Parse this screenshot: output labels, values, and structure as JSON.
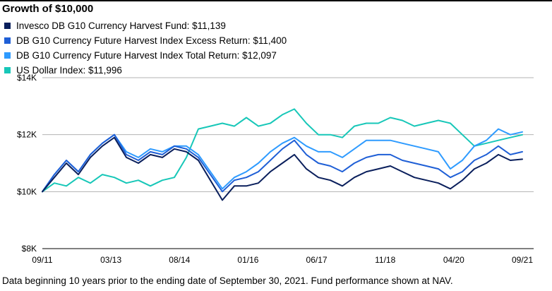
{
  "chart_data": {
    "type": "line",
    "title": "Growth of $10,000",
    "ylim": [
      8000,
      14000
    ],
    "yticks": [
      8000,
      10000,
      12000,
      14000
    ],
    "ytick_labels": [
      "$8K",
      "$10K",
      "$12K",
      "$14K"
    ],
    "xtick_labels": [
      "09/11",
      "03/13",
      "08/14",
      "01/16",
      "06/17",
      "11/18",
      "04/20",
      "09/21"
    ],
    "x": [
      "09/11",
      "12/11",
      "03/12",
      "06/12",
      "09/12",
      "12/12",
      "03/13",
      "06/13",
      "09/13",
      "12/13",
      "03/14",
      "06/14",
      "09/14",
      "12/14",
      "03/15",
      "06/15",
      "09/15",
      "12/15",
      "03/16",
      "06/16",
      "09/16",
      "12/16",
      "03/17",
      "06/17",
      "09/17",
      "12/17",
      "03/18",
      "06/18",
      "09/18",
      "12/18",
      "03/19",
      "06/19",
      "09/19",
      "12/19",
      "03/20",
      "06/20",
      "09/20",
      "12/20",
      "03/21",
      "06/21",
      "09/21"
    ],
    "grid": true,
    "legend_position": "top-left",
    "series": [
      {
        "name": "Invesco DB G10 Currency Harvest Fund: $11,139",
        "color": "#0a1f5c",
        "values": [
          10000,
          10500,
          11000,
          10600,
          11200,
          11600,
          11900,
          11200,
          11000,
          11300,
          11200,
          11500,
          11400,
          11100,
          10400,
          9700,
          10200,
          10200,
          10300,
          10700,
          11000,
          11300,
          10800,
          10500,
          10400,
          10200,
          10500,
          10700,
          10800,
          10900,
          10700,
          10500,
          10400,
          10300,
          10100,
          10400,
          10800,
          11000,
          11300,
          11100,
          11139
        ]
      },
      {
        "name": "DB G10 Currency Future Harvest Index Excess Return: $11,400",
        "color": "#1f5fd6",
        "values": [
          10000,
          10600,
          11100,
          10700,
          11300,
          11700,
          12000,
          11300,
          11100,
          11400,
          11300,
          11600,
          11500,
          11200,
          10600,
          10000,
          10400,
          10500,
          10700,
          11100,
          11500,
          11800,
          11300,
          11000,
          10900,
          10700,
          11000,
          11200,
          11300,
          11300,
          11100,
          11000,
          10900,
          10800,
          10500,
          10700,
          11100,
          11300,
          11600,
          11300,
          11400
        ]
      },
      {
        "name": "DB G10 Currency Future Harvest Index Total Return: $12,097",
        "color": "#2e9bff",
        "values": [
          10000,
          10600,
          11100,
          10700,
          11300,
          11700,
          12000,
          11400,
          11200,
          11500,
          11400,
          11600,
          11600,
          11300,
          10700,
          10100,
          10500,
          10700,
          11000,
          11400,
          11700,
          11900,
          11600,
          11400,
          11400,
          11200,
          11500,
          11800,
          11800,
          11800,
          11700,
          11600,
          11500,
          11400,
          10800,
          11100,
          11600,
          11800,
          12200,
          12000,
          12097
        ]
      },
      {
        "name": "US Dollar Index: $11,996",
        "color": "#17c7b8",
        "values": [
          10000,
          10300,
          10200,
          10500,
          10300,
          10600,
          10500,
          10300,
          10400,
          10200,
          10400,
          10500,
          11200,
          12200,
          12300,
          12400,
          12300,
          12600,
          12300,
          12400,
          12700,
          12900,
          12400,
          12000,
          12000,
          11900,
          12300,
          12400,
          12400,
          12600,
          12500,
          12300,
          12400,
          12500,
          12400,
          12000,
          11600,
          11700,
          11800,
          11900,
          11996
        ]
      }
    ]
  },
  "footnote": "Data beginning 10 years prior to the ending date of September 30, 2021. Fund performance shown at NAV."
}
